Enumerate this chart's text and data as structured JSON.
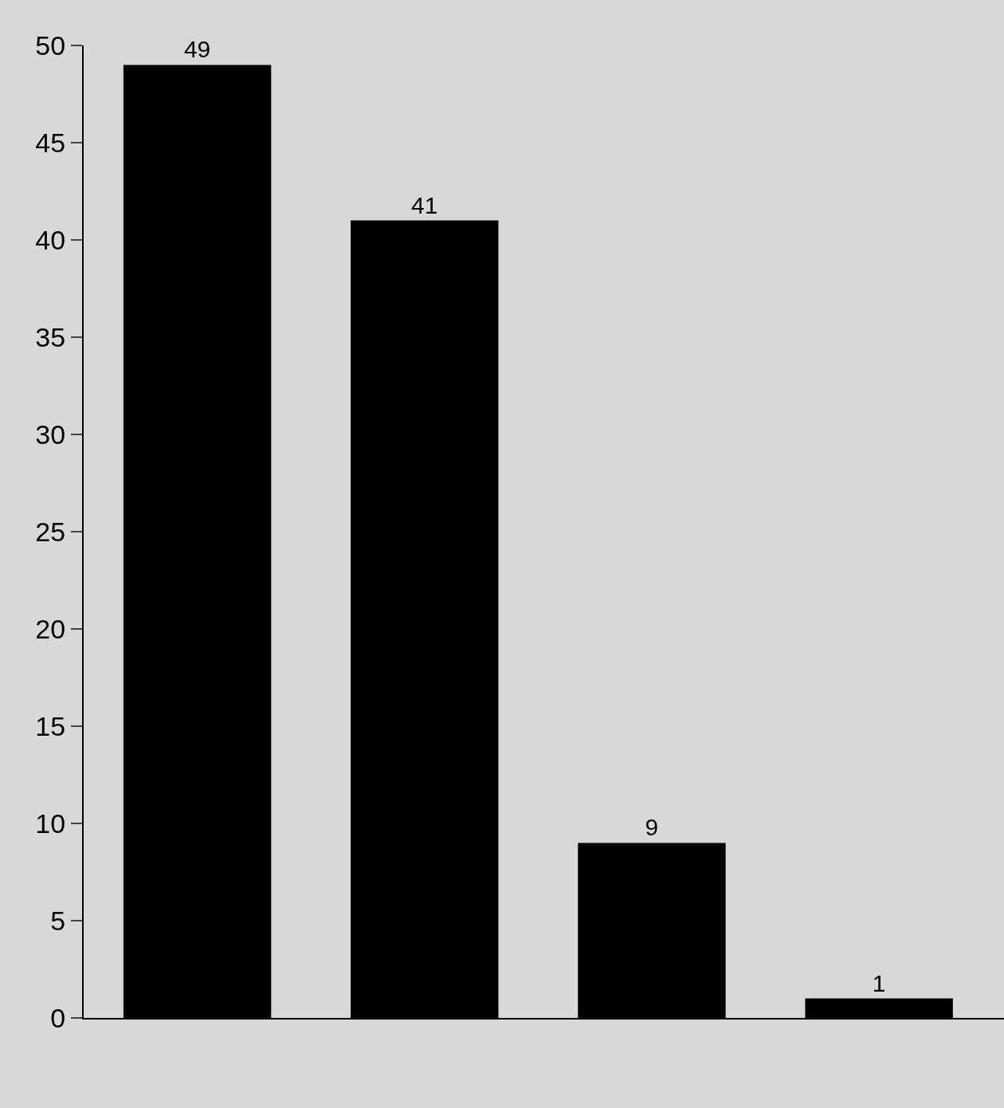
{
  "chart_data": {
    "type": "bar",
    "categories": [
      null,
      null,
      null,
      null
    ],
    "values": [
      49,
      41,
      9,
      1
    ],
    "color": "#000000",
    "data_labels": true,
    "ylim": [
      0,
      50
    ],
    "yticks": [
      0,
      5,
      10,
      15,
      20,
      25,
      30,
      35,
      40,
      45,
      50
    ],
    "grid": false,
    "legend": false,
    "tick_labels": "y"
  }
}
